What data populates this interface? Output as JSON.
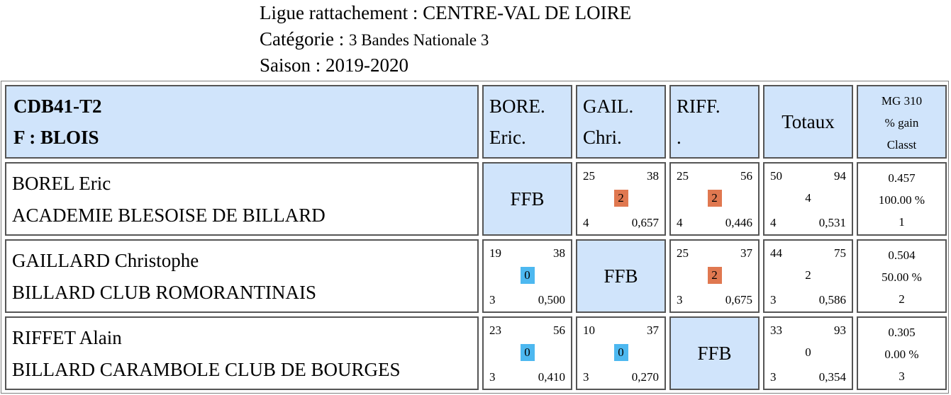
{
  "header": {
    "ligue_label": "Ligue rattachement : ",
    "ligue_value": "CENTRE-VAL DE LOIRE",
    "categorie_label": "Catégorie : ",
    "categorie_value": "3 Bandes Nationale 3",
    "saison_label": "Saison : ",
    "saison_value": "2019-2020"
  },
  "team": {
    "code": "CDB41-T2",
    "name": "F : BLOIS"
  },
  "columns": [
    {
      "line1": "BORE.",
      "line2": "Eric."
    },
    {
      "line1": "GAIL.",
      "line2": "Chri."
    },
    {
      "line1": "RIFF.",
      "line2": "."
    }
  ],
  "totaux_label": "Totaux",
  "stats_header": {
    "line1": "MG 310",
    "line2": "% gain",
    "line3": "Classt"
  },
  "ffb_label": "FFB",
  "colors": {
    "cell_blue": "#d0e4fb",
    "win_badge": "#e07850",
    "loss_badge": "#4db8f0",
    "border": "#555555"
  },
  "players": [
    {
      "name": "BOREL Eric",
      "club": "ACADEMIE BLESOISE DE BILLARD",
      "results": [
        null,
        {
          "points": "25",
          "distance": "38",
          "badge": "2",
          "reprises": "4",
          "moyenne": "0,657"
        },
        {
          "points": "25",
          "distance": "56",
          "badge": "2",
          "reprises": "4",
          "moyenne": "0,446"
        }
      ],
      "total": {
        "points": "50",
        "distance": "94",
        "match_points": "4",
        "reprises": "4",
        "moyenne": "0,531"
      },
      "stats": {
        "mg": "0.457",
        "pct": "100.00 %",
        "rank": "1"
      }
    },
    {
      "name": "GAILLARD Christophe",
      "club": "BILLARD CLUB ROMORANTINAIS",
      "results": [
        {
          "points": "19",
          "distance": "38",
          "badge": "0",
          "reprises": "3",
          "moyenne": "0,500"
        },
        null,
        {
          "points": "25",
          "distance": "37",
          "badge": "2",
          "reprises": "3",
          "moyenne": "0,675"
        }
      ],
      "total": {
        "points": "44",
        "distance": "75",
        "match_points": "2",
        "reprises": "3",
        "moyenne": "0,586"
      },
      "stats": {
        "mg": "0.504",
        "pct": "50.00 %",
        "rank": "2"
      }
    },
    {
      "name": "RIFFET Alain",
      "club": "BILLARD CARAMBOLE CLUB DE BOURGES",
      "results": [
        {
          "points": "23",
          "distance": "56",
          "badge": "0",
          "reprises": "3",
          "moyenne": "0,410"
        },
        {
          "points": "10",
          "distance": "37",
          "badge": "0",
          "reprises": "3",
          "moyenne": "0,270"
        },
        null
      ],
      "total": {
        "points": "33",
        "distance": "93",
        "match_points": "0",
        "reprises": "3",
        "moyenne": "0,354"
      },
      "stats": {
        "mg": "0.305",
        "pct": "0.00 %",
        "rank": "3"
      }
    }
  ]
}
